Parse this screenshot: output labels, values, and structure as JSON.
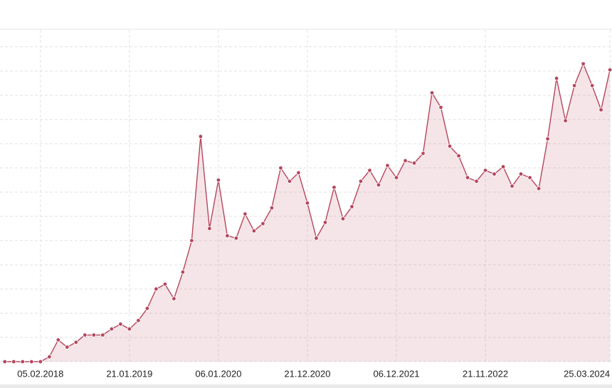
{
  "chart_data": {
    "type": "area",
    "x": [
      "18.09.2017",
      "23.10.2017",
      "27.11.2017",
      "01.01.2018",
      "05.02.2018",
      "12.03.2018",
      "16.04.2018",
      "21.05.2018",
      "25.06.2018",
      "30.07.2018",
      "03.09.2018",
      "08.10.2018",
      "12.11.2018",
      "17.12.2018",
      "21.01.2019",
      "25.02.2019",
      "01.04.2019",
      "06.05.2019",
      "10.06.2019",
      "15.07.2019",
      "19.08.2019",
      "23.09.2019",
      "28.10.2019",
      "02.12.2019",
      "06.01.2020",
      "10.02.2020",
      "16.03.2020",
      "20.04.2020",
      "25.05.2020",
      "29.06.2020",
      "03.08.2020",
      "07.09.2020",
      "12.10.2020",
      "16.11.2020",
      "21.12.2020",
      "25.01.2021",
      "01.03.2021",
      "05.04.2021",
      "10.05.2021",
      "14.06.2021",
      "19.07.2021",
      "23.08.2021",
      "27.09.2021",
      "01.11.2021",
      "06.12.2021",
      "10.01.2022",
      "14.02.2022",
      "21.03.2022",
      "25.04.2022",
      "30.05.2022",
      "04.07.2022",
      "08.08.2022",
      "12.09.2022",
      "17.10.2022",
      "21.11.2022",
      "26.12.2022",
      "30.01.2023",
      "06.03.2023",
      "10.04.2023",
      "15.05.2023",
      "19.06.2023",
      "24.07.2023",
      "28.08.2023",
      "02.10.2023",
      "06.11.2023",
      "11.12.2023",
      "15.01.2024",
      "19.02.2024",
      "25.03.2024"
    ],
    "values": [
      0,
      0,
      0,
      0,
      0,
      0.2,
      0.9,
      0.6,
      0.8,
      1.1,
      1.1,
      1.1,
      1.35,
      1.55,
      1.35,
      1.7,
      2.2,
      3.0,
      3.2,
      2.6,
      3.7,
      5.0,
      9.3,
      5.5,
      7.5,
      5.2,
      5.1,
      6.1,
      5.4,
      5.7,
      6.35,
      8.0,
      7.45,
      7.8,
      6.55,
      5.1,
      5.75,
      7.2,
      5.9,
      6.4,
      7.45,
      7.9,
      7.3,
      8.1,
      7.6,
      8.3,
      8.2,
      8.6,
      11.1,
      10.5,
      8.9,
      8.5,
      7.6,
      7.45,
      7.9,
      7.75,
      8.05,
      7.25,
      7.75,
      7.6,
      7.15,
      9.2,
      11.7,
      9.95,
      11.4,
      12.3,
      11.4,
      10.4,
      12.05
    ],
    "color": "#b5475e",
    "xlim": [
      "30.08.2017",
      "02.04.2024"
    ],
    "xticks": [
      "05.02.2018",
      "21.01.2019",
      "06.01.2020",
      "21.12.2020",
      "06.12.2021",
      "21.11.2022",
      "25.03.2024"
    ],
    "ylim": [
      0,
      13.7
    ],
    "yticks": [
      0,
      1,
      2,
      3,
      4,
      5,
      6,
      7,
      8,
      9,
      10,
      11,
      12,
      13
    ],
    "ytick_labels": false,
    "grid": true
  }
}
